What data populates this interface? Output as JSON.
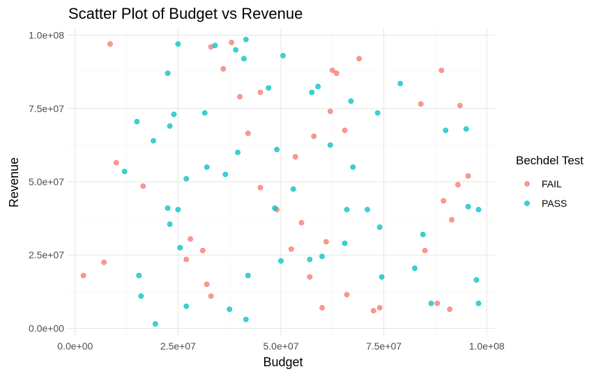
{
  "chart_data": {
    "type": "scatter",
    "title": "Scatter Plot of Budget vs Revenue",
    "xlabel": "Budget",
    "ylabel": "Revenue",
    "xlim": [
      -2000000,
      102000000
    ],
    "ylim": [
      -2500000,
      102500000
    ],
    "x_ticks": [
      0,
      25000000,
      50000000,
      75000000,
      100000000
    ],
    "x_tick_labels": [
      "0.0e+00",
      "2.5e+07",
      "5.0e+07",
      "7.5e+07",
      "1.0e+08"
    ],
    "y_ticks": [
      0,
      25000000,
      50000000,
      75000000,
      100000000
    ],
    "y_tick_labels": [
      "0.0e+00",
      "2.5e+07",
      "5.0e+07",
      "7.5e+07",
      "1.0e+08"
    ],
    "grid": true,
    "legend": {
      "title": "Bechdel Test",
      "placement": "right"
    },
    "series": [
      {
        "name": "FAIL",
        "color": "#F8766D",
        "points": [
          [
            8500000,
            97000000
          ],
          [
            33000000,
            96000000
          ],
          [
            38000000,
            97500000
          ],
          [
            36000000,
            88500000
          ],
          [
            40000000,
            79000000
          ],
          [
            45000000,
            80500000
          ],
          [
            42000000,
            66500000
          ],
          [
            62500000,
            88000000
          ],
          [
            63500000,
            87000000
          ],
          [
            69000000,
            92000000
          ],
          [
            62000000,
            74000000
          ],
          [
            58000000,
            65500000
          ],
          [
            65500000,
            67500000
          ],
          [
            84000000,
            76500000
          ],
          [
            89000000,
            88000000
          ],
          [
            93500000,
            76000000
          ],
          [
            10000000,
            56500000
          ],
          [
            16500000,
            48500000
          ],
          [
            53500000,
            58500000
          ],
          [
            45000000,
            48000000
          ],
          [
            49000000,
            40500000
          ],
          [
            55000000,
            36000000
          ],
          [
            61000000,
            29500000
          ],
          [
            52500000,
            27000000
          ],
          [
            57000000,
            17500000
          ],
          [
            28000000,
            30500000
          ],
          [
            31000000,
            26500000
          ],
          [
            27000000,
            23500000
          ],
          [
            2000000,
            18000000
          ],
          [
            7000000,
            22500000
          ],
          [
            32000000,
            15000000
          ],
          [
            33000000,
            11000000
          ],
          [
            60000000,
            7000000
          ],
          [
            66000000,
            11500000
          ],
          [
            72500000,
            6000000
          ],
          [
            74000000,
            7000000
          ],
          [
            85000000,
            26500000
          ],
          [
            88000000,
            8500000
          ],
          [
            91000000,
            6500000
          ],
          [
            89500000,
            43500000
          ],
          [
            91500000,
            37000000
          ],
          [
            93000000,
            49000000
          ],
          [
            95500000,
            52000000
          ]
        ]
      },
      {
        "name": "PASS",
        "color": "#00BFC4",
        "points": [
          [
            25000000,
            97000000
          ],
          [
            34000000,
            96500000
          ],
          [
            41500000,
            98500000
          ],
          [
            39000000,
            95000000
          ],
          [
            41000000,
            92000000
          ],
          [
            50500000,
            93000000
          ],
          [
            22500000,
            87000000
          ],
          [
            47000000,
            82000000
          ],
          [
            57500000,
            80500000
          ],
          [
            59000000,
            82500000
          ],
          [
            67000000,
            77500000
          ],
          [
            79000000,
            83500000
          ],
          [
            15000000,
            70500000
          ],
          [
            24000000,
            73000000
          ],
          [
            23000000,
            69000000
          ],
          [
            31500000,
            73500000
          ],
          [
            73500000,
            73500000
          ],
          [
            19000000,
            64000000
          ],
          [
            39500000,
            60000000
          ],
          [
            49000000,
            61000000
          ],
          [
            62000000,
            62500000
          ],
          [
            90000000,
            67500000
          ],
          [
            95000000,
            68000000
          ],
          [
            12000000,
            53500000
          ],
          [
            32000000,
            55000000
          ],
          [
            36500000,
            52500000
          ],
          [
            27000000,
            51000000
          ],
          [
            53000000,
            47500000
          ],
          [
            67500000,
            55000000
          ],
          [
            22500000,
            41000000
          ],
          [
            25000000,
            40500000
          ],
          [
            48500000,
            41000000
          ],
          [
            66000000,
            40500000
          ],
          [
            71000000,
            40500000
          ],
          [
            95500000,
            41500000
          ],
          [
            98000000,
            40500000
          ],
          [
            23000000,
            35500000
          ],
          [
            25500000,
            27500000
          ],
          [
            74000000,
            34500000
          ],
          [
            84500000,
            32000000
          ],
          [
            65500000,
            29000000
          ],
          [
            57000000,
            23500000
          ],
          [
            60000000,
            24500000
          ],
          [
            50000000,
            23000000
          ],
          [
            15500000,
            18000000
          ],
          [
            16000000,
            11000000
          ],
          [
            42000000,
            18000000
          ],
          [
            74500000,
            17500000
          ],
          [
            82500000,
            20500000
          ],
          [
            97500000,
            16500000
          ],
          [
            27000000,
            7500000
          ],
          [
            37500000,
            6500000
          ],
          [
            19500000,
            1500000
          ],
          [
            41500000,
            3000000
          ],
          [
            86500000,
            8500000
          ],
          [
            98000000,
            8500000
          ]
        ]
      }
    ]
  }
}
